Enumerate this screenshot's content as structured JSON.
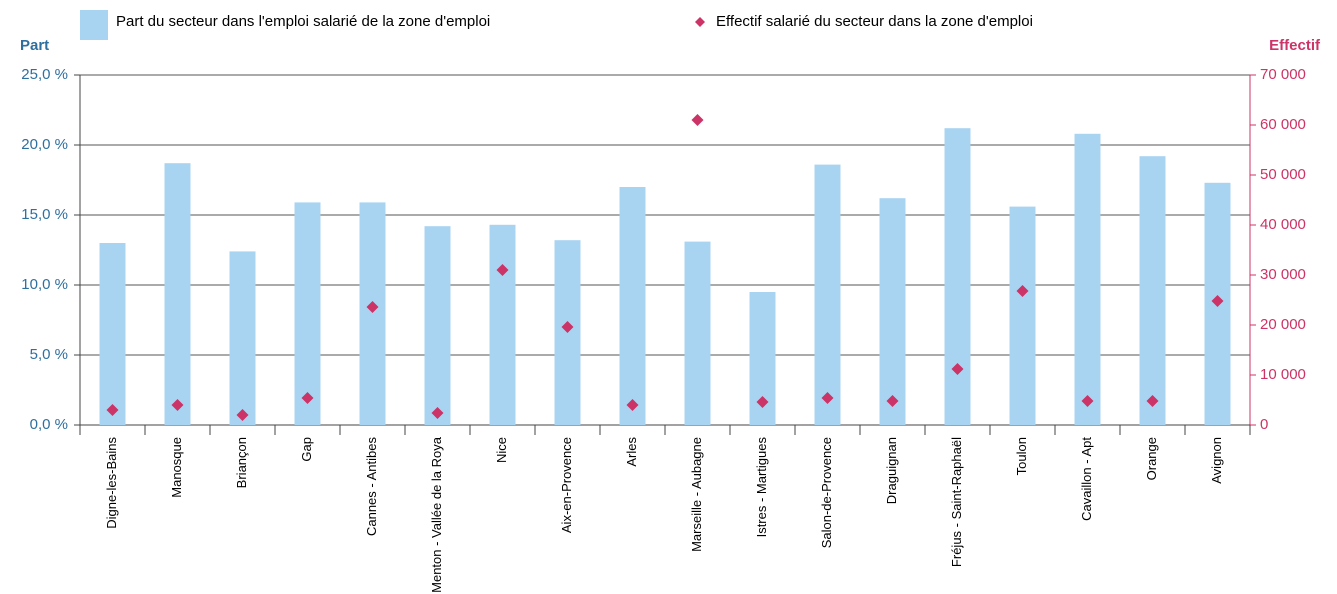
{
  "chart_data": {
    "type": "bar",
    "categories": [
      "Digne-les-Bains",
      "Manosque",
      "Briançon",
      "Gap",
      "Cannes - Antibes",
      "Menton - Vallée de la Roya",
      "Nice",
      "Aix-en-Provence",
      "Arles",
      "Marseille - Aubagne",
      "Istres - Martigues",
      "Salon-de-Provence",
      "Draguignan",
      "Fréjus - Saint-Raphaël",
      "Toulon",
      "Cavaillon - Apt",
      "Orange",
      "Avignon"
    ],
    "y_label": "Part",
    "y2_label": "Effectif",
    "series": [
      {
        "name": "Part du secteur dans l'emploi salarié de la zone d'emploi",
        "type": "bar",
        "color": "#a8d4f2",
        "values": [
          13.0,
          18.7,
          12.4,
          15.9,
          15.9,
          14.2,
          14.3,
          13.2,
          17.0,
          13.1,
          9.5,
          18.6,
          16.2,
          21.2,
          15.6,
          20.8,
          19.2,
          17.3
        ]
      },
      {
        "name": "Effectif salarié du secteur dans la zone d'emploi",
        "type": "scatter",
        "axis": "y2",
        "color": "#cc3366",
        "values": [
          3000,
          4000,
          2000,
          5400,
          23600,
          2400,
          31000,
          19600,
          4000,
          61000,
          4600,
          5400,
          4800,
          11200,
          26800,
          4800,
          4800,
          24800
        ]
      }
    ],
    "ylim": [
      0,
      25
    ],
    "yticks": [
      {
        "value": 0,
        "label": "0,0 %"
      },
      {
        "value": 5,
        "label": "5,0 %"
      },
      {
        "value": 10,
        "label": "10,0 %"
      },
      {
        "value": 15,
        "label": "15,0 %"
      },
      {
        "value": 20,
        "label": "20,0 %"
      },
      {
        "value": 25,
        "label": "25,0 %"
      }
    ],
    "y2lim": [
      0,
      70000
    ],
    "y2ticks": [
      0,
      {
        "value": 10000,
        "label": "10 000"
      },
      {
        "value": 20000,
        "label": "20 000"
      },
      {
        "value": 30000,
        "label": "30 000"
      },
      {
        "value": 40000,
        "label": "40 000"
      },
      {
        "value": 50000,
        "label": "50 000"
      },
      {
        "value": 60000,
        "label": "60 000"
      },
      {
        "value": 70000,
        "label": "70 000"
      }
    ],
    "grid": true
  }
}
